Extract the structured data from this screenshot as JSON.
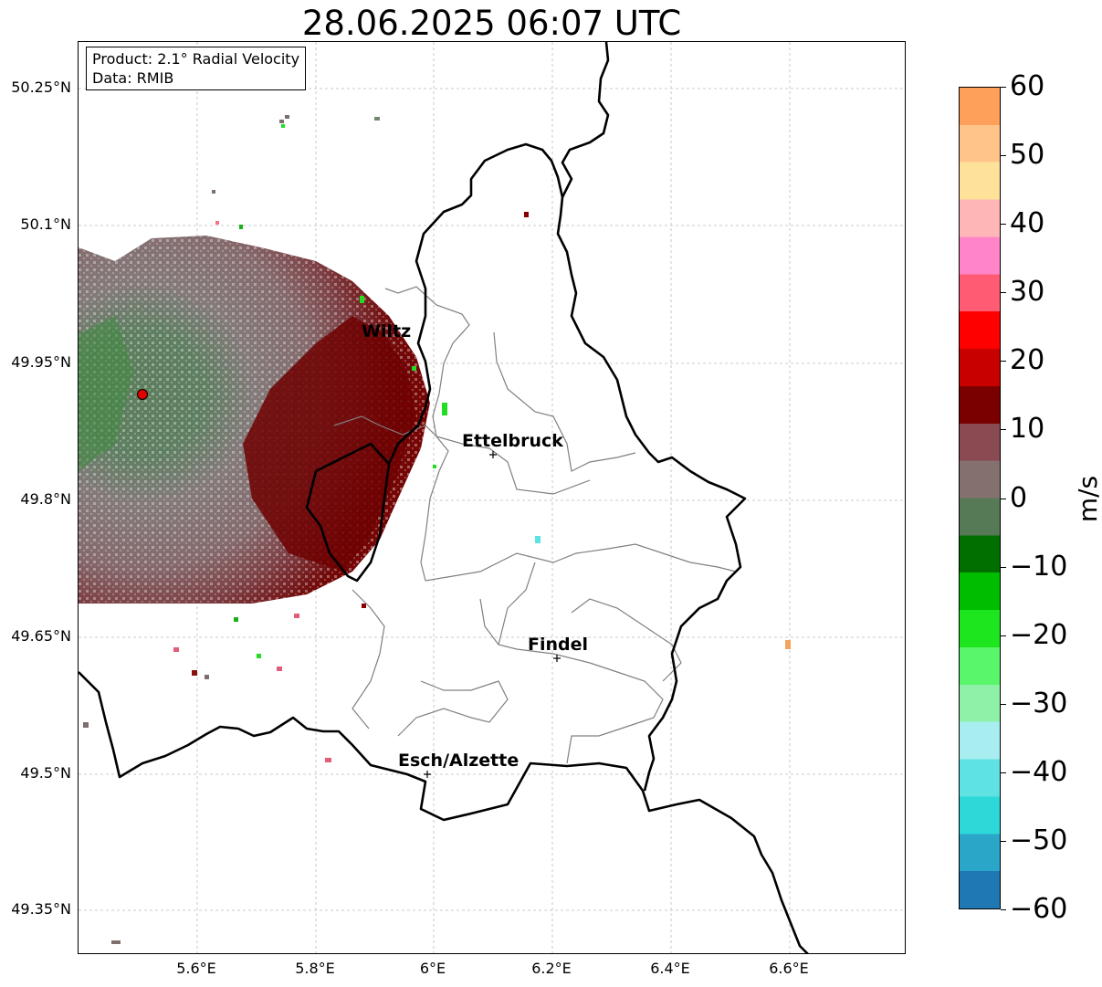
{
  "title": "28.06.2025 06:07 UTC",
  "info": {
    "product": "Product: 2.1° Radial Velocity",
    "data": "Data: RMIB"
  },
  "axes": {
    "y_ticks": [
      "50.25°N",
      "50.1°N",
      "49.95°N",
      "49.8°N",
      "49.65°N",
      "49.5°N",
      "49.35°N"
    ],
    "x_ticks": [
      "5.6°E",
      "5.8°E",
      "6°E",
      "6.2°E",
      "6.4°E",
      "6.6°E"
    ]
  },
  "cities": [
    {
      "name": "Wiltz"
    },
    {
      "name": "Ettelbruck"
    },
    {
      "name": "Findel"
    },
    {
      "name": "Esch/Alzette"
    }
  ],
  "colorbar": {
    "unit": "m/s",
    "ticks": [
      "60",
      "50",
      "40",
      "30",
      "20",
      "10",
      "0",
      "−10",
      "−20",
      "−30",
      "−40",
      "−50",
      "−60"
    ],
    "colors": [
      "#1f77b4",
      "#2aa6c9",
      "#2dd8d8",
      "#5fe2e2",
      "#a8eef0",
      "#8ff0a8",
      "#59f56a",
      "#1ee61e",
      "#00bd00",
      "#006f00",
      "#567a56",
      "#857070",
      "#8a4a52",
      "#7a0000",
      "#c80000",
      "#ff0000",
      "#ff5c73",
      "#ff85c8",
      "#ffb6b6",
      "#ffe29a",
      "#ffc48a",
      "#ffa05a"
    ]
  }
}
